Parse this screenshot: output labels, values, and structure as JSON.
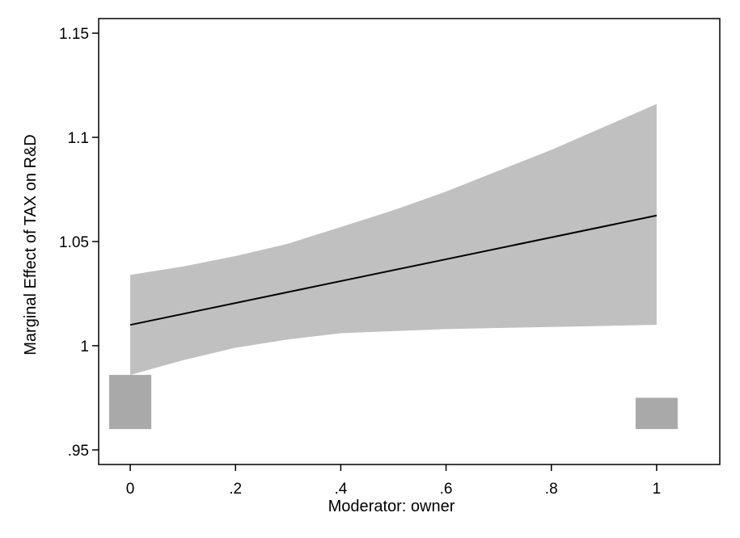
{
  "chart_data": {
    "type": "line",
    "xlabel": "Moderator: owner",
    "ylabel": "Marginal Effect of TAX on R&D",
    "xlim": [
      -0.06,
      1.12
    ],
    "ylim": [
      0.943,
      1.157
    ],
    "x_ticks": [
      0,
      0.2,
      0.4,
      0.6,
      0.8,
      1
    ],
    "x_tick_labels": [
      "0",
      ".2",
      ".4",
      ".6",
      ".8",
      "1"
    ],
    "y_ticks": [
      0.95,
      1,
      1.05,
      1.1,
      1.15
    ],
    "y_tick_labels": [
      ".95",
      "1",
      "1.05",
      "1.1",
      "1.15"
    ],
    "grid": false,
    "series": [
      {
        "x": [
          0,
          1
        ],
        "y": [
          1.01,
          1.0625
        ]
      }
    ],
    "confidence_band": {
      "x": [
        0,
        0.1,
        0.2,
        0.3,
        0.4,
        0.5,
        0.6,
        0.7,
        0.8,
        0.9,
        1.0
      ],
      "upper": [
        1.034,
        1.038,
        1.043,
        1.049,
        1.057,
        1.065,
        1.074,
        1.084,
        1.094,
        1.105,
        1.116
      ],
      "lower": [
        0.986,
        0.993,
        0.999,
        1.003,
        1.006,
        1.007,
        1.008,
        1.0085,
        1.009,
        1.0095,
        1.01
      ]
    },
    "histogram": {
      "baseline": 0.96,
      "bin_width": 0.08,
      "bars": [
        {
          "x": 0,
          "top": 0.986
        },
        {
          "x": 1,
          "top": 0.975
        }
      ]
    },
    "colors": {
      "band": "#c0c0c0",
      "histogram": "#a9a9a9",
      "line": "#000000",
      "axis": "#000000"
    }
  }
}
